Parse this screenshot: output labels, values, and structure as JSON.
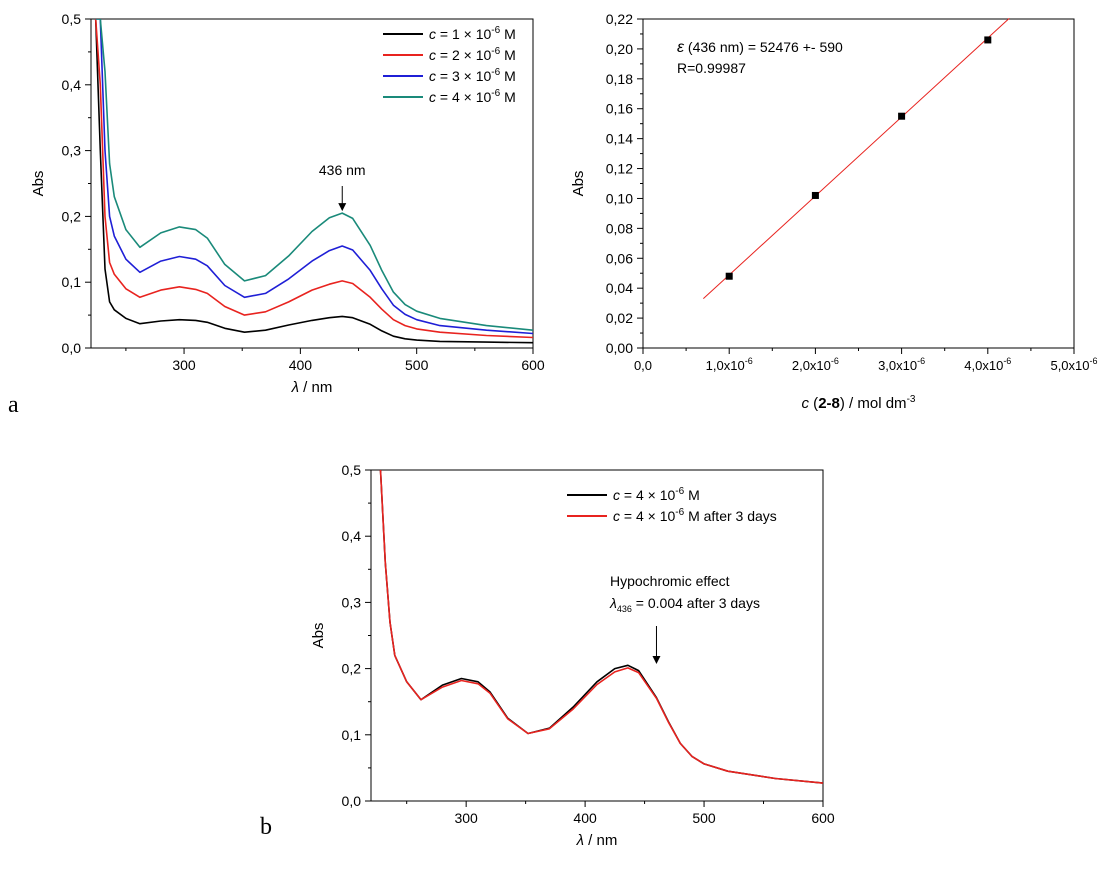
{
  "panel_labels": [
    "a",
    "b"
  ],
  "chart_data": [
    {
      "type": "line",
      "ylabel": "Abs",
      "xlabel_symbol": "λ",
      "xlabel_unit": " / nm",
      "xlim": [
        220,
        600
      ],
      "ylim": [
        0.0,
        0.5
      ],
      "xticks": [
        300,
        400,
        500,
        600
      ],
      "yticks": [
        "0,0",
        "0,1",
        "0,2",
        "0,3",
        "0,4",
        "0,5"
      ],
      "annotation": "436 nm",
      "annotation_x": 436,
      "legend_position": "top-right",
      "colors": [
        "#000000",
        "#e8231f",
        "#1f1fd6",
        "#1a8a7a"
      ],
      "series": [
        {
          "name_prefix": "c",
          "name_main": " = 1 × 10",
          "name_exp": "-6",
          "name_suffix": " M",
          "x": [
            224,
            228,
            232,
            236,
            240,
            250,
            262,
            280,
            296,
            310,
            320,
            335,
            352,
            370,
            390,
            410,
            425,
            436,
            445,
            460,
            470,
            480,
            490,
            500,
            520,
            560,
            600
          ],
          "y": [
            0.5,
            0.3,
            0.12,
            0.07,
            0.058,
            0.045,
            0.037,
            0.041,
            0.043,
            0.042,
            0.039,
            0.03,
            0.024,
            0.027,
            0.035,
            0.042,
            0.046,
            0.048,
            0.046,
            0.036,
            0.026,
            0.018,
            0.014,
            0.012,
            0.01,
            0.009,
            0.008
          ]
        },
        {
          "name_prefix": "c",
          "name_main": " = 2 × 10",
          "name_exp": "-6",
          "name_suffix": " M",
          "x": [
            224,
            228,
            232,
            236,
            240,
            250,
            262,
            280,
            296,
            310,
            320,
            335,
            352,
            370,
            390,
            410,
            425,
            436,
            445,
            460,
            470,
            480,
            490,
            500,
            520,
            560,
            600
          ],
          "y": [
            0.5,
            0.4,
            0.2,
            0.13,
            0.112,
            0.09,
            0.077,
            0.088,
            0.093,
            0.089,
            0.083,
            0.063,
            0.05,
            0.055,
            0.07,
            0.088,
            0.097,
            0.102,
            0.098,
            0.077,
            0.059,
            0.043,
            0.034,
            0.029,
            0.024,
            0.019,
            0.016
          ]
        },
        {
          "name_prefix": "c",
          "name_main": " = 3 × 10",
          "name_exp": "-6",
          "name_suffix": " M",
          "x": [
            224,
            228,
            232,
            236,
            240,
            250,
            262,
            280,
            296,
            310,
            320,
            335,
            352,
            370,
            390,
            410,
            425,
            436,
            445,
            460,
            470,
            480,
            490,
            500,
            520,
            560,
            600
          ],
          "y": [
            0.5,
            0.5,
            0.3,
            0.2,
            0.17,
            0.135,
            0.115,
            0.132,
            0.139,
            0.135,
            0.125,
            0.095,
            0.077,
            0.083,
            0.105,
            0.132,
            0.148,
            0.155,
            0.149,
            0.118,
            0.09,
            0.065,
            0.051,
            0.043,
            0.034,
            0.027,
            0.022
          ]
        },
        {
          "name_prefix": "c",
          "name_main": " = 4 × 10",
          "name_exp": "-6",
          "name_suffix": " M",
          "x": [
            224,
            228,
            232,
            236,
            240,
            250,
            262,
            280,
            296,
            310,
            320,
            335,
            352,
            370,
            390,
            410,
            425,
            436,
            445,
            460,
            470,
            480,
            490,
            500,
            520,
            560,
            600
          ],
          "y": [
            0.5,
            0.5,
            0.42,
            0.28,
            0.23,
            0.18,
            0.153,
            0.175,
            0.184,
            0.18,
            0.167,
            0.127,
            0.102,
            0.11,
            0.14,
            0.177,
            0.198,
            0.205,
            0.197,
            0.156,
            0.118,
            0.085,
            0.066,
            0.056,
            0.045,
            0.034,
            0.027
          ]
        }
      ]
    },
    {
      "type": "scatter",
      "ylabel": "Abs",
      "xlabel_symbol": "c",
      "xlabel_open": " (",
      "xlabel_bold": "2-8",
      "xlabel_mid": ") / mol dm",
      "xlabel_exp": "-3",
      "xlim": [
        0.0,
        5e-06
      ],
      "ylim": [
        0.0,
        0.22
      ],
      "xticks": [
        {
          "value": 0.0,
          "main": "0,0",
          "exp": ""
        },
        {
          "value": 1e-06,
          "main": "1,0x10",
          "exp": "-6"
        },
        {
          "value": 2e-06,
          "main": "2,0x10",
          "exp": "-6"
        },
        {
          "value": 3e-06,
          "main": "3,0x10",
          "exp": "-6"
        },
        {
          "value": 4e-06,
          "main": "4,0x10",
          "exp": "-6"
        },
        {
          "value": 5e-06,
          "main": "5,0x10",
          "exp": "-6"
        }
      ],
      "yticks": [
        "0,00",
        "0,02",
        "0,04",
        "0,06",
        "0,08",
        "0,10",
        "0,12",
        "0,14",
        "0,16",
        "0,18",
        "0,20",
        "0,22"
      ],
      "annotation_line1_symbol": "ε",
      "annotation_line1_rest": " (436 nm) = 52476 +- 590",
      "annotation_line2": "R=0.99987",
      "colors": [
        "#000000",
        "#e8231f"
      ],
      "points": {
        "x": [
          1e-06,
          2e-06,
          3e-06,
          4e-06
        ],
        "y": [
          0.048,
          0.102,
          0.155,
          0.206
        ]
      },
      "fit": {
        "x": [
          7e-07,
          4.25e-06
        ],
        "y": [
          0.033,
          0.2205
        ]
      }
    },
    {
      "type": "line",
      "ylabel": "Abs",
      "xlabel_symbol": "λ",
      "xlabel_unit": " / nm",
      "xlim": [
        220,
        600
      ],
      "ylim": [
        0.0,
        0.5
      ],
      "xticks": [
        300,
        400,
        500,
        600
      ],
      "yticks": [
        "0,0",
        "0,1",
        "0,2",
        "0,3",
        "0,4",
        "0,5"
      ],
      "annotation_line1": "Hypochromic effect",
      "annotation_line2_symbol": "λ",
      "annotation_line2_sub": "436",
      "annotation_line2_rest": " = 0.004 after 3 days",
      "annotation_x": 460,
      "legend_position": "top-right",
      "colors": [
        "#000000",
        "#e8231f"
      ],
      "series": [
        {
          "name_prefix": "c",
          "name_main": " = 4 × 10",
          "name_exp": "-6",
          "name_suffix": " M",
          "x": [
            228,
            232,
            236,
            240,
            250,
            262,
            280,
            296,
            310,
            320,
            335,
            352,
            370,
            390,
            410,
            425,
            436,
            445,
            460,
            470,
            480,
            490,
            500,
            520,
            560,
            600
          ],
          "y": [
            0.5,
            0.36,
            0.27,
            0.22,
            0.18,
            0.153,
            0.175,
            0.185,
            0.18,
            0.165,
            0.125,
            0.102,
            0.11,
            0.142,
            0.18,
            0.2,
            0.205,
            0.197,
            0.156,
            0.12,
            0.087,
            0.067,
            0.056,
            0.045,
            0.034,
            0.027
          ]
        },
        {
          "name_prefix": "c",
          "name_main": " = 4 × 10",
          "name_exp": "-6",
          "name_suffix": " M after 3 days",
          "x": [
            228,
            232,
            236,
            240,
            250,
            262,
            280,
            296,
            310,
            320,
            335,
            352,
            370,
            390,
            410,
            425,
            436,
            445,
            460,
            470,
            480,
            490,
            500,
            520,
            560,
            600
          ],
          "y": [
            0.5,
            0.36,
            0.27,
            0.22,
            0.18,
            0.153,
            0.172,
            0.182,
            0.177,
            0.163,
            0.124,
            0.102,
            0.109,
            0.139,
            0.176,
            0.195,
            0.201,
            0.194,
            0.155,
            0.119,
            0.087,
            0.067,
            0.056,
            0.045,
            0.034,
            0.027
          ]
        }
      ]
    }
  ]
}
